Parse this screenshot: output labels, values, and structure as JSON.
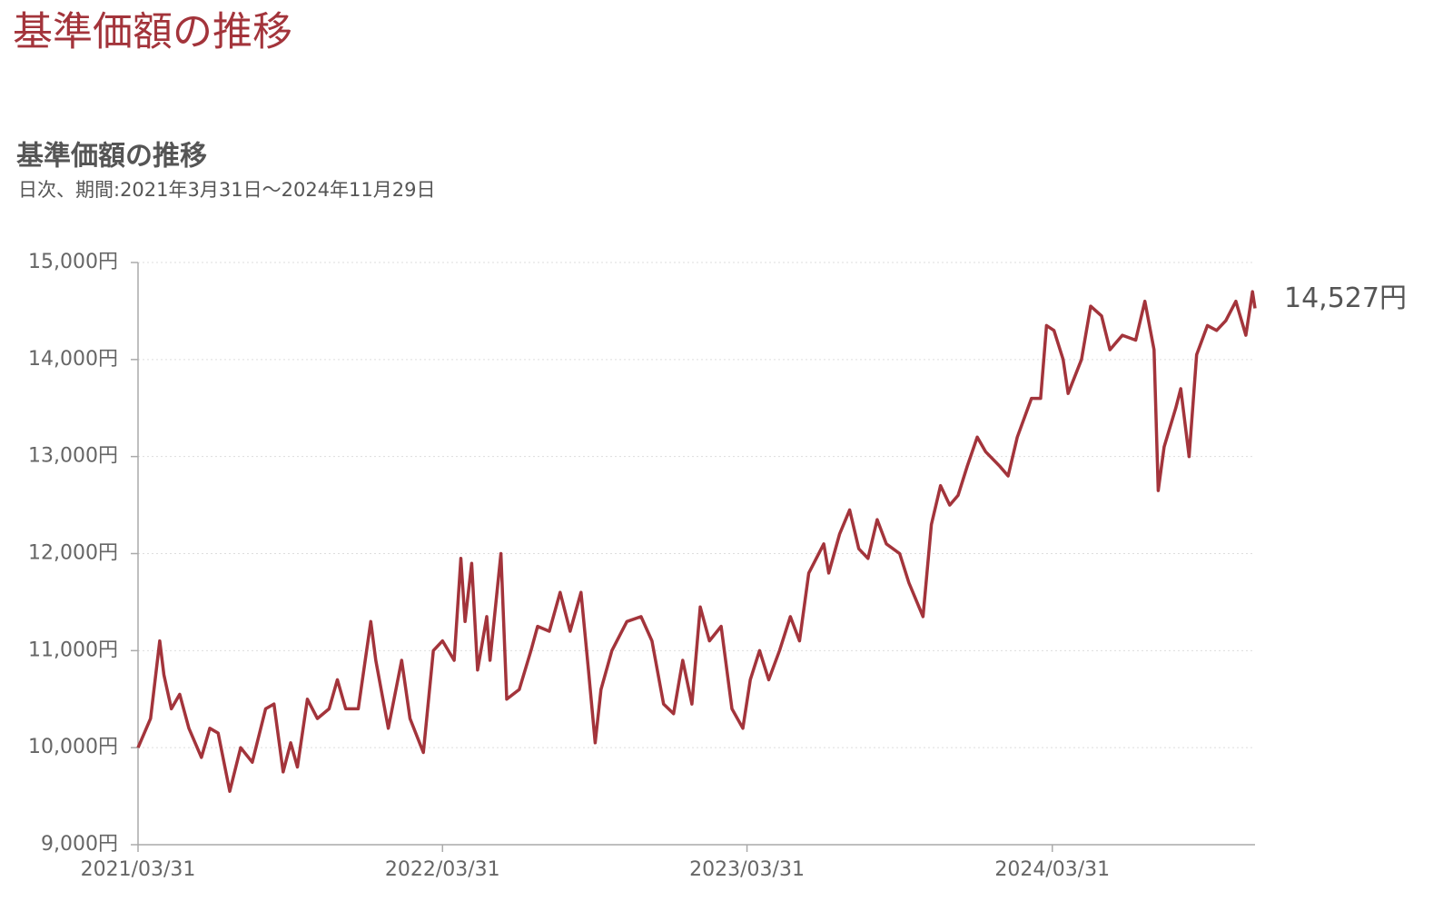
{
  "header": {
    "title": "基準価額の推移"
  },
  "chart_data": {
    "type": "line",
    "title": "基準価額の推移",
    "subtitle": "日次、期間:2021年3月31日～2024年11月29日",
    "x": [
      "2021/03/31",
      "2021/04/15",
      "2021/04/26",
      "2021/05/01",
      "2021/05/10",
      "2021/05/20",
      "2021/05/31",
      "2021/06/15",
      "2021/06/25",
      "2021/07/05",
      "2021/07/19",
      "2021/08/01",
      "2021/08/15",
      "2021/08/31",
      "2021/09/10",
      "2021/09/21",
      "2021/09/30",
      "2021/10/08",
      "2021/10/20",
      "2021/11/01",
      "2021/11/15",
      "2021/11/25",
      "2021/12/05",
      "2021/12/20",
      "2022/01/04",
      "2022/01/10",
      "2022/01/25",
      "2022/02/10",
      "2022/02/20",
      "2022/03/08",
      "2022/03/20",
      "2022/03/31",
      "2022/04/14",
      "2022/04/22",
      "2022/04/27",
      "2022/05/05",
      "2022/05/12",
      "2022/05/23",
      "2022/05/27",
      "2022/06/09",
      "2022/06/16",
      "2022/07/01",
      "2022/07/15",
      "2022/07/23",
      "2022/08/06",
      "2022/08/19",
      "2022/08/31",
      "2022/09/13",
      "2022/09/22",
      "2022/09/30",
      "2022/10/07",
      "2022/10/20",
      "2022/11/07",
      "2022/11/24",
      "2022/12/07",
      "2022/12/21",
      "2023/01/02",
      "2023/01/13",
      "2023/01/24",
      "2023/02/03",
      "2023/02/14",
      "2023/02/28",
      "2023/03/13",
      "2023/03/26",
      "2023/04/04",
      "2023/04/15",
      "2023/04/26",
      "2023/05/09",
      "2023/05/22",
      "2023/06/02",
      "2023/06/13",
      "2023/07/01",
      "2023/07/07",
      "2023/07/20",
      "2023/08/01",
      "2023/08/12",
      "2023/08/23",
      "2023/09/03",
      "2023/09/14",
      "2023/09/30",
      "2023/10/11",
      "2023/10/28",
      "2023/11/07",
      "2023/11/18",
      "2023/11/29",
      "2023/12/09",
      "2023/12/20",
      "2024/01/01",
      "2024/01/11",
      "2024/01/28",
      "2024/02/07",
      "2024/02/18",
      "2024/03/06",
      "2024/03/17",
      "2024/03/24",
      "2024/04/02",
      "2024/04/13",
      "2024/04/19",
      "2024/05/05",
      "2024/05/16",
      "2024/05/29",
      "2024/06/08",
      "2024/06/23",
      "2024/07/09",
      "2024/07/20",
      "2024/07/31",
      "2024/08/05",
      "2024/08/12",
      "2024/08/26",
      "2024/09/01",
      "2024/09/11",
      "2024/09/20",
      "2024/10/03",
      "2024/10/14",
      "2024/10/25",
      "2024/11/06",
      "2024/11/18",
      "2024/11/26",
      "2024/11/29"
    ],
    "series": [
      {
        "color": "#a3343b",
        "values": [
          10000,
          10300,
          11100,
          10750,
          10400,
          10550,
          10200,
          9900,
          10200,
          10150,
          9550,
          10000,
          9850,
          10400,
          10450,
          9750,
          10050,
          9800,
          10500,
          10300,
          10400,
          10700,
          10400,
          10400,
          11300,
          10900,
          10200,
          10900,
          10300,
          9950,
          11000,
          11100,
          10900,
          11950,
          11300,
          11900,
          10800,
          11350,
          10900,
          12000,
          10500,
          10600,
          11000,
          11250,
          11200,
          11600,
          11200,
          11600,
          10800,
          10050,
          10600,
          11000,
          11300,
          11350,
          11100,
          10450,
          10350,
          10900,
          10450,
          11450,
          11100,
          11250,
          10400,
          10200,
          10700,
          11000,
          10700,
          11000,
          11350,
          11100,
          11800,
          12100,
          11800,
          12200,
          12450,
          12050,
          11950,
          12350,
          12100,
          12000,
          11700,
          11350,
          12300,
          12700,
          12500,
          12600,
          12900,
          13200,
          13050,
          12900,
          12800,
          13200,
          13600,
          13600,
          14350,
          14300,
          14000,
          13650,
          14000,
          14550,
          14450,
          14100,
          14250,
          14200,
          14600,
          14100,
          12650,
          13100,
          13500,
          13700,
          13000,
          14050,
          14350,
          14300,
          14400,
          14600,
          14250,
          14700,
          14527
        ]
      }
    ],
    "end_label": "14,527円",
    "xlim": [
      "2021/03/31",
      "2024/11/29"
    ],
    "xticks": [
      "2021/03/31",
      "2022/03/31",
      "2023/03/31",
      "2024/03/31"
    ],
    "ylim": [
      9000,
      15000
    ],
    "yticks": [
      {
        "value": 9000,
        "label": "9,000円"
      },
      {
        "value": 10000,
        "label": "10,000円"
      },
      {
        "value": 11000,
        "label": "11,000円"
      },
      {
        "value": 12000,
        "label": "12,000円"
      },
      {
        "value": 13000,
        "label": "13,000円"
      },
      {
        "value": 14000,
        "label": "14,000円"
      },
      {
        "value": 15000,
        "label": "15,000円"
      }
    ],
    "grid": true
  }
}
